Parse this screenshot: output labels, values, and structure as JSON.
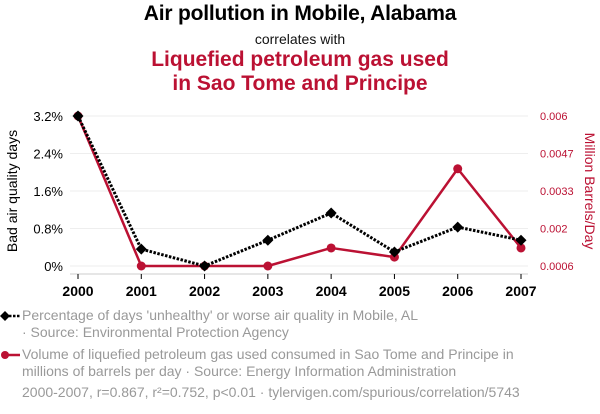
{
  "header": {
    "title": "Air pollution in Mobile, Alabama",
    "subtitle": "correlates with",
    "title2_line1": "Liquefied petroleum gas used",
    "title2_line2": "in Sao Tome and Principe"
  },
  "colors": {
    "series1": "#000000",
    "series2": "#bb1133",
    "grid": "#eeeeee",
    "legend_text": "#999999"
  },
  "chart_data": {
    "type": "line",
    "categories": [
      "2000",
      "2001",
      "2002",
      "2003",
      "2004",
      "2005",
      "2006",
      "2007"
    ],
    "ylabel_left": "Bad air quality days",
    "ylabel_right": "Million Barrels/Day",
    "left_ticks": [
      "0%",
      "0.8%",
      "1.6%",
      "2.4%",
      "3.2%"
    ],
    "right_ticks": [
      "0.0006",
      "0.002",
      "0.0033",
      "0.0047",
      "0.006"
    ],
    "ylim_left": [
      0,
      3.2
    ],
    "ylim_right": [
      0.0006,
      0.006
    ],
    "grid": true,
    "series": [
      {
        "name": "Percentage of days 'unhealthy' or worse air quality in Mobile, AL",
        "axis": "left",
        "style": "dotted",
        "marker": "diamond",
        "values": [
          3.2,
          0.36,
          0.0,
          0.55,
          1.13,
          0.3,
          0.83,
          0.55
        ]
      },
      {
        "name": "Volume of liquefied petroleum gas used consumed in Sao Tome and Principe in millions of barrels per day",
        "axis": "right",
        "style": "solid",
        "marker": "circle",
        "values": [
          0.006,
          0.0006,
          0.0006,
          0.0006,
          0.00125,
          0.00092,
          0.0041,
          0.00125
        ]
      }
    ]
  },
  "legend": {
    "item1_line1": "Percentage of days 'unhealthy' or worse air quality in Mobile, AL",
    "item1_line2": "· Source: Environmental Protection Agency",
    "item2_line1": "Volume of liquefied petroleum gas used consumed in Sao Tome and Principe in",
    "item2_line2": "millions of barrels per day · Source: Energy Information Administration"
  },
  "footer": "2000-2007, r=0.867, r²=0.752, p<0.01 · tylervigen.com/spurious/correlation/5743"
}
